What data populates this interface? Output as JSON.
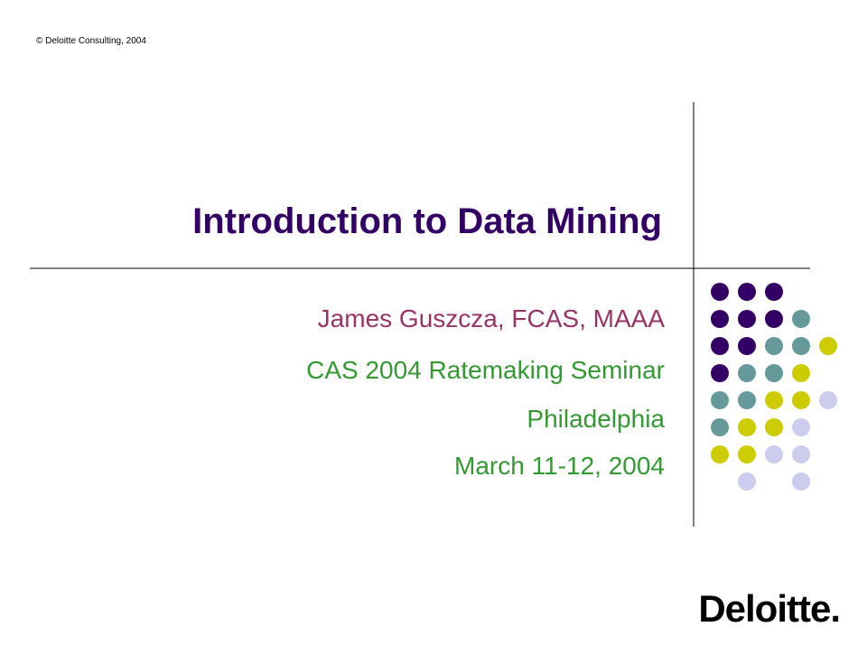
{
  "header": {
    "copyright": "© Deloitte Consulting, 2004"
  },
  "title": "Introduction to Data Mining",
  "subtitle": [
    "James Guszcza, FCAS, MAAA",
    "CAS 2004 Ratemaking Seminar",
    "Philadelphia",
    "March 11-12, 2004"
  ],
  "footer": {
    "logo": "Deloitte."
  }
}
